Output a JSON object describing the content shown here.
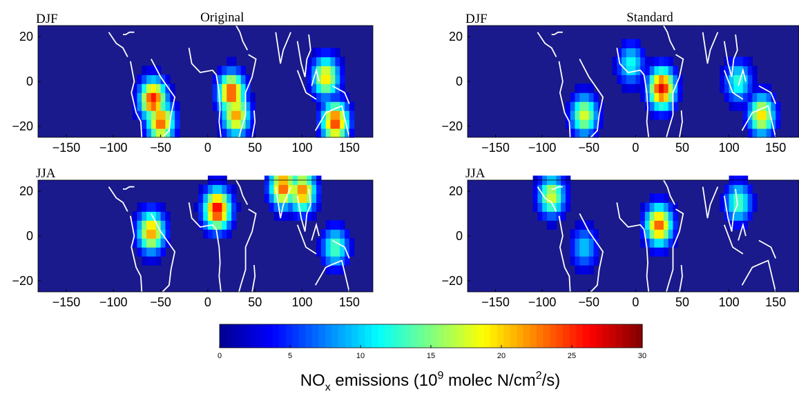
{
  "figure": {
    "colorbar_label": {
      "main": "NO",
      "sub": "x",
      "mid": " emissions (10",
      "sup1": "9",
      "rest": " molec N/cm",
      "sup2": "2",
      "end": "/s)"
    }
  },
  "colors": {
    "ocean": "#1a1a8c",
    "coast": "#ffffff",
    "colormap": [
      "#00008f",
      "#0000ff",
      "#0080ff",
      "#00ffff",
      "#80ff80",
      "#ffff00",
      "#ff8000",
      "#ff0000",
      "#800000"
    ]
  },
  "chart_data": [
    {
      "type": "heatmap",
      "title": "Original",
      "season": "DJF",
      "xlim": [
        -180,
        175
      ],
      "ylim": [
        -25,
        25
      ],
      "xticks": [
        -150,
        -100,
        -50,
        0,
        50,
        100,
        150
      ],
      "yticks": [
        20,
        0,
        -20
      ],
      "hotspots": [
        {
          "lon": -58,
          "lat": -8,
          "value": 26
        },
        {
          "lon": -50,
          "lat": -18,
          "value": 24
        },
        {
          "lon": 25,
          "lat": -5,
          "value": 25
        },
        {
          "lon": 30,
          "lat": -15,
          "value": 22
        },
        {
          "lon": 135,
          "lat": -18,
          "value": 25
        },
        {
          "lon": 125,
          "lat": 2,
          "value": 20
        }
      ]
    },
    {
      "type": "heatmap",
      "title": "Standard",
      "season": "DJF",
      "xlim": [
        -180,
        175
      ],
      "ylim": [
        -25,
        25
      ],
      "xticks": [
        -150,
        -100,
        -50,
        0,
        50,
        100,
        150
      ],
      "yticks": [
        20,
        0,
        -20
      ],
      "hotspots": [
        {
          "lon": -55,
          "lat": -15,
          "value": 18
        },
        {
          "lon": 28,
          "lat": -3,
          "value": 27
        },
        {
          "lon": 135,
          "lat": -15,
          "value": 20
        },
        {
          "lon": -5,
          "lat": 8,
          "value": 12
        },
        {
          "lon": 110,
          "lat": 0,
          "value": 13
        }
      ]
    },
    {
      "type": "heatmap",
      "title": "",
      "season": "JJA",
      "xlim": [
        -180,
        175
      ],
      "ylim": [
        -25,
        25
      ],
      "xticks": [
        -150,
        -100,
        -50,
        0,
        50,
        100,
        150
      ],
      "yticks": [
        20,
        0,
        -20
      ],
      "hotspots": [
        {
          "lon": -60,
          "lat": 2,
          "value": 22
        },
        {
          "lon": 10,
          "lat": 12,
          "value": 27
        },
        {
          "lon": 80,
          "lat": 22,
          "value": 24
        },
        {
          "lon": 100,
          "lat": 20,
          "value": 23
        },
        {
          "lon": 135,
          "lat": -5,
          "value": 14
        }
      ]
    },
    {
      "type": "heatmap",
      "title": "",
      "season": "JJA",
      "xlim": [
        -180,
        175
      ],
      "ylim": [
        -25,
        25
      ],
      "xticks": [
        -150,
        -100,
        -50,
        0,
        50,
        100,
        150
      ],
      "yticks": [
        20,
        0,
        -20
      ],
      "hotspots": [
        {
          "lon": -90,
          "lat": 18,
          "value": 18
        },
        {
          "lon": 25,
          "lat": 5,
          "value": 24
        },
        {
          "lon": 110,
          "lat": 15,
          "value": 14
        },
        {
          "lon": -55,
          "lat": -5,
          "value": 10
        }
      ]
    },
    {
      "type": "colorbar",
      "ticks": [
        0,
        5,
        10,
        15,
        20,
        25,
        30
      ],
      "range": [
        0,
        30
      ]
    }
  ]
}
